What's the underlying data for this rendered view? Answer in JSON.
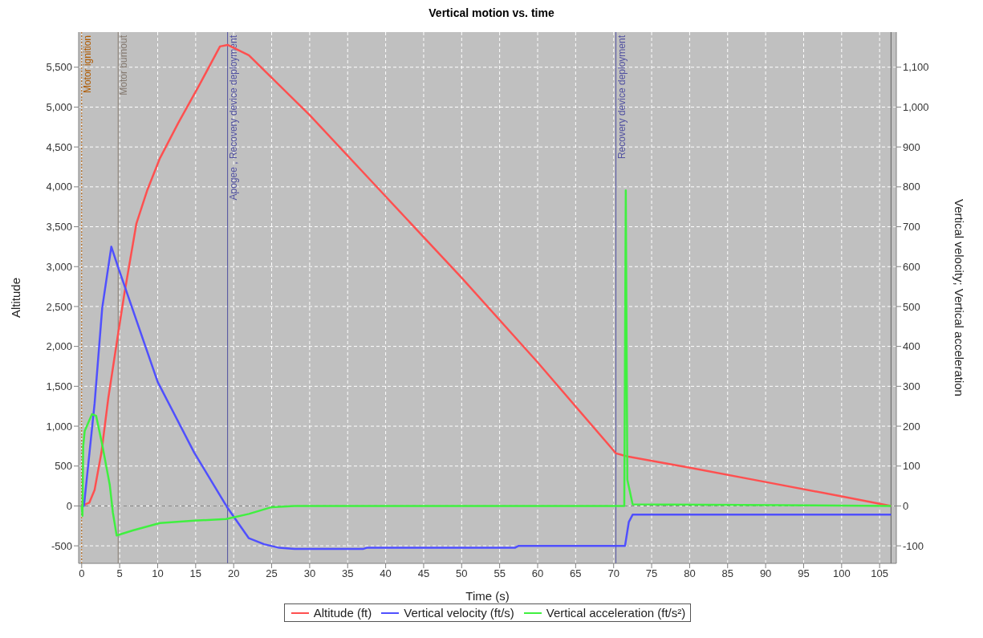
{
  "chart_data": {
    "type": "line",
    "title": "Vertical motion vs. time",
    "xlabel": "Time (s)",
    "ylabel": "Altitude",
    "y2label": "Vertical velocity; Vertical acceleration",
    "xlim": [
      -0.4,
      107.2
    ],
    "xticks": [
      0,
      5,
      10,
      15,
      20,
      25,
      30,
      35,
      40,
      45,
      50,
      55,
      60,
      65,
      70,
      75,
      80,
      85,
      90,
      95,
      100,
      105
    ],
    "ylim": [
      -720,
      5940
    ],
    "yticks": [
      {
        "value": -500,
        "label": "-500"
      },
      0,
      500,
      {
        "value": 1000,
        "label": "1,000"
      },
      {
        "value": 1500,
        "label": "1,500"
      },
      {
        "value": 2000,
        "label": "2,000"
      },
      {
        "value": 2500,
        "label": "2,500"
      },
      {
        "value": 3000,
        "label": "3,000"
      },
      {
        "value": 3500,
        "label": "3,500"
      },
      {
        "value": 4000,
        "label": "4,000"
      },
      {
        "value": 4500,
        "label": "4,500"
      },
      {
        "value": 5000,
        "label": "5,000"
      },
      {
        "value": 5500,
        "label": "5,500"
      }
    ],
    "y2lim": [
      -144,
      1188
    ],
    "y2ticks": [
      {
        "value": -100,
        "label": "-100"
      },
      0,
      100,
      200,
      300,
      400,
      500,
      600,
      700,
      800,
      900,
      {
        "value": 1000,
        "label": "1,000"
      },
      {
        "value": 1100,
        "label": "1,100"
      }
    ],
    "grid": true,
    "legend": "bottom",
    "marker": "none",
    "line_style": "solid",
    "series": [
      {
        "name": "Altitude (ft)",
        "color": "#ff5050",
        "x": [
          0,
          1,
          1.7,
          2.6,
          3.5,
          4.7,
          5.6,
          7.2,
          8.6,
          10.3,
          12.7,
          15.5,
          18.2,
          19.2,
          22,
          30,
          40,
          50,
          60,
          70.3,
          71.8,
          80,
          90,
          100,
          106.5
        ],
        "values": [
          0,
          40,
          200,
          670,
          1350,
          2100,
          2650,
          3540,
          3950,
          4360,
          4800,
          5280,
          5760,
          5780,
          5650,
          4900,
          3880,
          2860,
          1800,
          660,
          620,
          480,
          300,
          120,
          0
        ]
      },
      {
        "name": "Vertical velocity (ft/s)",
        "color": "#5050ff",
        "axis": "y2",
        "x": [
          0,
          0.3,
          1.7,
          2.7,
          3.9,
          4.8,
          10,
          14.8,
          19.1,
          22,
          24,
          26,
          28,
          37,
          37.5,
          57,
          57.5,
          71.5,
          72,
          72.5,
          106.5
        ],
        "values": [
          0,
          0,
          257,
          496,
          650,
          598,
          311,
          134,
          -2,
          -81,
          -96,
          -105,
          -108,
          -108,
          -105,
          -105,
          -100,
          -100,
          -40,
          -22,
          -22
        ]
      },
      {
        "name": "Vertical acceleration (ft/s²)",
        "color": "#40f040",
        "axis": "y2",
        "x": [
          0,
          0.1,
          0.2,
          0.4,
          1.35,
          1.9,
          2.7,
          3.7,
          4.1,
          4.6,
          6.8,
          10.3,
          14.8,
          19,
          22,
          25,
          28,
          71.4,
          71.6,
          71.8,
          72.5,
          106.5
        ],
        "values": [
          0,
          -25,
          150,
          188,
          230,
          226,
          154,
          52,
          -16,
          -74,
          -61,
          -43,
          -37,
          -33,
          -20,
          -3,
          0,
          0,
          791,
          66,
          4,
          0
        ]
      }
    ],
    "ref_lines": [
      {
        "axis": "x",
        "value": 0,
        "label": "Motor ignition",
        "color": "#b05a00",
        "line_style": "dotted"
      },
      {
        "axis": "x",
        "value": 4.8,
        "label": "Motor burnout",
        "color": "#857a70",
        "line_style": "solid"
      },
      {
        "axis": "x",
        "value": 19.2,
        "label": "Apogee , Recovery device deployment",
        "color": "#5050a0",
        "line_style": "solid"
      },
      {
        "axis": "x",
        "value": 70.3,
        "label": "Recovery device deployment",
        "color": "#5050a0",
        "line_style": "solid"
      },
      {
        "axis": "x",
        "value": 106.5,
        "color": "#606060",
        "line_style": "solid"
      },
      {
        "axis": "y",
        "value": 0,
        "color": "#808080",
        "line_style": "dashed"
      }
    ]
  }
}
